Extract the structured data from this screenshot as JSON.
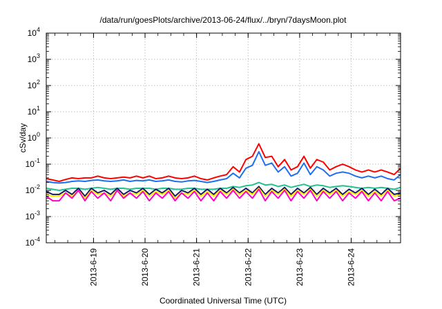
{
  "chart_data": {
    "type": "line",
    "title": "/data/run/goesPlots/archive/2013-06-24/flux/../bryn/7daysMoon.plot",
    "xlabel": "Coordinated Universal Time (UTC)",
    "ylabel": "cSv/day",
    "yscale": "log",
    "ylim": [
      0.0001,
      10000
    ],
    "xlim": [
      "2013-06-18 02:00",
      "2013-06-24 23:00"
    ],
    "grid": true,
    "y_ticks": [
      {
        "base": "10",
        "exp": "-4",
        "value": 0.0001
      },
      {
        "base": "10",
        "exp": "-3",
        "value": 0.001
      },
      {
        "base": "10",
        "exp": "-2",
        "value": 0.01
      },
      {
        "base": "10",
        "exp": "-1",
        "value": 0.1
      },
      {
        "base": "10",
        "exp": "0",
        "value": 1
      },
      {
        "base": "10",
        "exp": "1",
        "value": 10
      },
      {
        "base": "10",
        "exp": "2",
        "value": 100
      },
      {
        "base": "10",
        "exp": "3",
        "value": 1000
      },
      {
        "base": "10",
        "exp": "4",
        "value": 10000
      }
    ],
    "x_ticks": [
      "2013-6-19",
      "2013-6-20",
      "2013-6-21",
      "2013-6-22",
      "2013-6-23",
      "2013-6-24"
    ],
    "x": [
      "2013-06-18 02:00",
      "2013-06-18 05:00",
      "2013-06-18 08:00",
      "2013-06-18 11:00",
      "2013-06-18 14:00",
      "2013-06-18 17:00",
      "2013-06-18 20:00",
      "2013-06-18 23:00",
      "2013-06-19 02:00",
      "2013-06-19 05:00",
      "2013-06-19 08:00",
      "2013-06-19 11:00",
      "2013-06-19 14:00",
      "2013-06-19 17:00",
      "2013-06-19 20:00",
      "2013-06-19 23:00",
      "2013-06-20 02:00",
      "2013-06-20 05:00",
      "2013-06-20 08:00",
      "2013-06-20 11:00",
      "2013-06-20 14:00",
      "2013-06-20 17:00",
      "2013-06-20 20:00",
      "2013-06-20 23:00",
      "2013-06-21 02:00",
      "2013-06-21 05:00",
      "2013-06-21 08:00",
      "2013-06-21 11:00",
      "2013-06-21 14:00",
      "2013-06-21 17:00",
      "2013-06-21 20:00",
      "2013-06-21 23:00",
      "2013-06-22 02:00",
      "2013-06-22 05:00",
      "2013-06-22 08:00",
      "2013-06-22 11:00",
      "2013-06-22 14:00",
      "2013-06-22 17:00",
      "2013-06-22 20:00",
      "2013-06-22 23:00",
      "2013-06-23 02:00",
      "2013-06-23 05:00",
      "2013-06-23 08:00",
      "2013-06-23 11:00",
      "2013-06-23 14:00",
      "2013-06-23 17:00",
      "2013-06-23 20:00",
      "2013-06-23 23:00",
      "2013-06-24 02:00",
      "2013-06-24 05:00",
      "2013-06-24 08:00",
      "2013-06-24 11:00",
      "2013-06-24 14:00",
      "2013-06-24 17:00",
      "2013-06-24 20:00",
      "2013-06-24 23:00"
    ],
    "series": [
      {
        "color": "#ff0000",
        "values": [
          0.028,
          0.025,
          0.022,
          0.026,
          0.03,
          0.028,
          0.03,
          0.03,
          0.035,
          0.03,
          0.028,
          0.03,
          0.032,
          0.03,
          0.035,
          0.03,
          0.035,
          0.028,
          0.03,
          0.035,
          0.03,
          0.028,
          0.03,
          0.035,
          0.028,
          0.025,
          0.03,
          0.035,
          0.04,
          0.08,
          0.05,
          0.15,
          0.2,
          0.6,
          0.18,
          0.2,
          0.08,
          0.15,
          0.06,
          0.08,
          0.2,
          0.07,
          0.15,
          0.12,
          0.06,
          0.08,
          0.1,
          0.08,
          0.06,
          0.05,
          0.06,
          0.05,
          0.06,
          0.05,
          0.04,
          0.07
        ]
      },
      {
        "color": "#1e6ff0",
        "values": [
          0.022,
          0.02,
          0.019,
          0.02,
          0.022,
          0.023,
          0.022,
          0.024,
          0.025,
          0.023,
          0.022,
          0.023,
          0.025,
          0.022,
          0.024,
          0.023,
          0.025,
          0.022,
          0.023,
          0.025,
          0.022,
          0.021,
          0.023,
          0.024,
          0.022,
          0.02,
          0.022,
          0.025,
          0.028,
          0.045,
          0.03,
          0.07,
          0.09,
          0.3,
          0.09,
          0.11,
          0.05,
          0.08,
          0.035,
          0.045,
          0.11,
          0.04,
          0.08,
          0.06,
          0.035,
          0.045,
          0.05,
          0.045,
          0.035,
          0.03,
          0.035,
          0.03,
          0.035,
          0.028,
          0.025,
          0.04
        ]
      },
      {
        "color": "#20c090",
        "values": [
          0.012,
          0.011,
          0.01,
          0.011,
          0.012,
          0.012,
          0.011,
          0.012,
          0.013,
          0.012,
          0.011,
          0.012,
          0.012,
          0.011,
          0.012,
          0.012,
          0.012,
          0.011,
          0.012,
          0.012,
          0.011,
          0.011,
          0.012,
          0.012,
          0.011,
          0.011,
          0.011,
          0.012,
          0.012,
          0.014,
          0.013,
          0.015,
          0.016,
          0.02,
          0.016,
          0.017,
          0.014,
          0.016,
          0.013,
          0.015,
          0.017,
          0.014,
          0.016,
          0.015,
          0.013,
          0.014,
          0.015,
          0.014,
          0.013,
          0.012,
          0.013,
          0.012,
          0.013,
          0.012,
          0.011,
          0.013
        ]
      },
      {
        "color": "#1a1a66",
        "values": [
          0.009,
          0.007,
          0.007,
          0.01,
          0.007,
          0.012,
          0.006,
          0.012,
          0.008,
          0.01,
          0.007,
          0.012,
          0.007,
          0.01,
          0.008,
          0.012,
          0.007,
          0.011,
          0.008,
          0.012,
          0.006,
          0.01,
          0.008,
          0.012,
          0.007,
          0.011,
          0.007,
          0.012,
          0.008,
          0.013,
          0.008,
          0.012,
          0.008,
          0.014,
          0.007,
          0.012,
          0.008,
          0.013,
          0.007,
          0.012,
          0.008,
          0.013,
          0.007,
          0.012,
          0.008,
          0.012,
          0.007,
          0.011,
          0.008,
          0.012,
          0.007,
          0.011,
          0.007,
          0.012,
          0.007,
          0.008
        ]
      },
      {
        "color": "#ffee00",
        "values": [
          0.007,
          0.006,
          0.006,
          0.008,
          0.006,
          0.01,
          0.005,
          0.01,
          0.007,
          0.008,
          0.006,
          0.01,
          0.006,
          0.008,
          0.007,
          0.01,
          0.006,
          0.009,
          0.007,
          0.01,
          0.005,
          0.008,
          0.007,
          0.01,
          0.006,
          0.009,
          0.006,
          0.01,
          0.007,
          0.011,
          0.007,
          0.01,
          0.007,
          0.012,
          0.006,
          0.01,
          0.007,
          0.011,
          0.006,
          0.01,
          0.007,
          0.011,
          0.006,
          0.01,
          0.007,
          0.01,
          0.006,
          0.009,
          0.007,
          0.01,
          0.006,
          0.009,
          0.006,
          0.01,
          0.006,
          0.007
        ]
      },
      {
        "color": "#ff00cc",
        "values": [
          0.006,
          0.004,
          0.004,
          0.008,
          0.005,
          0.01,
          0.004,
          0.009,
          0.005,
          0.008,
          0.004,
          0.01,
          0.005,
          0.008,
          0.005,
          0.009,
          0.004,
          0.008,
          0.005,
          0.009,
          0.004,
          0.008,
          0.005,
          0.009,
          0.004,
          0.008,
          0.004,
          0.009,
          0.005,
          0.01,
          0.005,
          0.009,
          0.005,
          0.011,
          0.004,
          0.009,
          0.005,
          0.01,
          0.004,
          0.009,
          0.005,
          0.01,
          0.004,
          0.009,
          0.005,
          0.009,
          0.004,
          0.008,
          0.005,
          0.009,
          0.004,
          0.008,
          0.004,
          0.009,
          0.004,
          0.005
        ]
      }
    ]
  }
}
